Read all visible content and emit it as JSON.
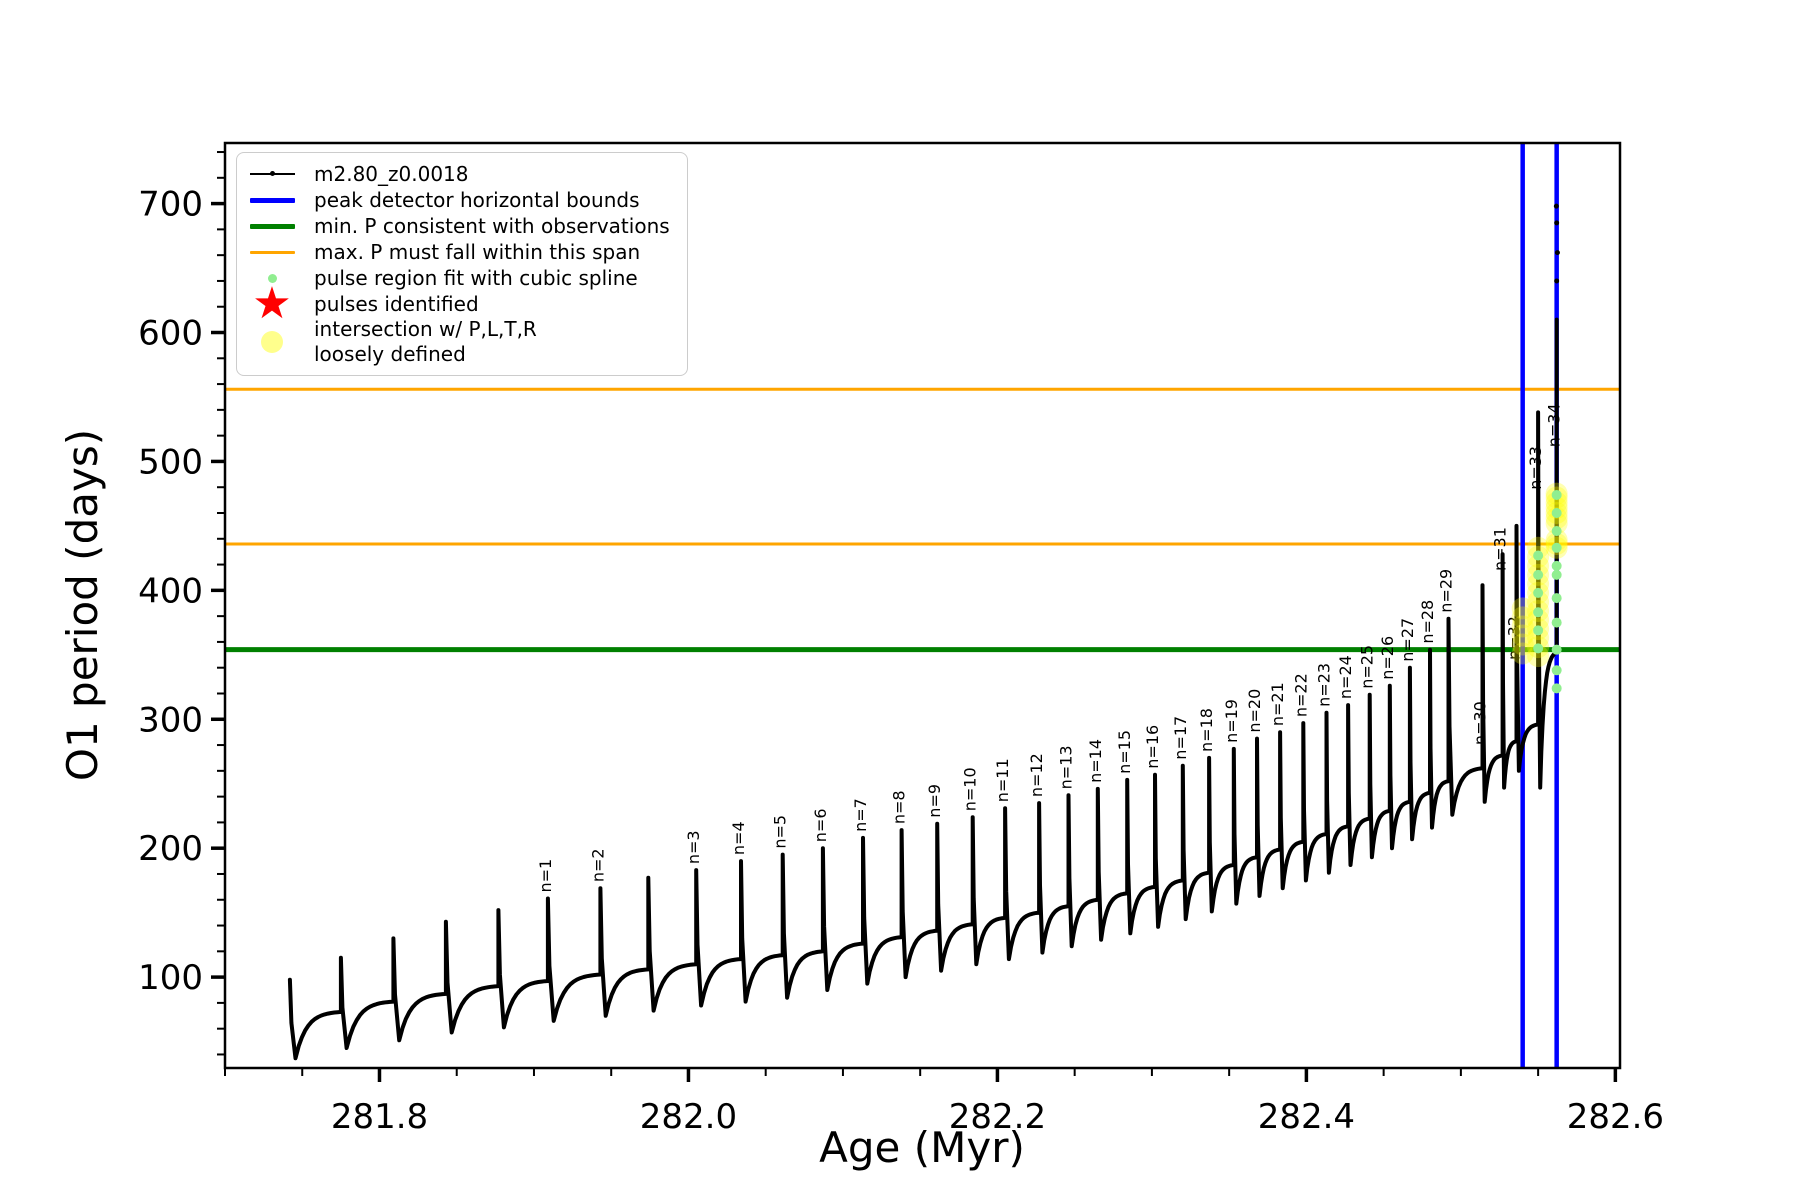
{
  "chart_data": {
    "type": "line",
    "title": "",
    "xlabel": "Age (Myr)",
    "ylabel": "O1 period (days)",
    "xlim": [
      281.7,
      282.603
    ],
    "ylim": [
      29.5,
      747
    ],
    "x_major_ticks": [
      {
        "v": 281.8,
        "label": "281.8"
      },
      {
        "v": 282.0,
        "label": "282.0"
      },
      {
        "v": 282.2,
        "label": "282.2"
      },
      {
        "v": 282.4,
        "label": "282.4"
      },
      {
        "v": 282.6,
        "label": "282.6"
      }
    ],
    "x_minor_step": 0.05,
    "y_major_ticks": [
      {
        "v": 100,
        "label": "100"
      },
      {
        "v": 200,
        "label": "200"
      },
      {
        "v": 300,
        "label": "300"
      },
      {
        "v": 400,
        "label": "400"
      },
      {
        "v": 500,
        "label": "500"
      },
      {
        "v": 600,
        "label": "600"
      },
      {
        "v": 700,
        "label": "700"
      }
    ],
    "y_minor_step": 20,
    "series_name": "m2.80_z0.0018",
    "series_color": "#000000",
    "pulses": [
      {
        "age": 281.742,
        "peak": 98,
        "base": 97,
        "label": null
      },
      {
        "age": 281.775,
        "peak": 115,
        "base": 73,
        "label": null
      },
      {
        "age": 281.809,
        "peak": 130,
        "base": 81,
        "label": null
      },
      {
        "age": 281.843,
        "peak": 143,
        "base": 87,
        "label": null
      },
      {
        "age": 281.877,
        "peak": 152,
        "base": 93,
        "label": null
      },
      {
        "age": 281.909,
        "peak": 161,
        "base": 97,
        "label": "n=1"
      },
      {
        "age": 281.943,
        "peak": 169,
        "base": 102,
        "label": "n=2"
      },
      {
        "age": 281.974,
        "peak": 177,
        "base": 106,
        "label": null
      },
      {
        "age": 282.005,
        "peak": 183,
        "base": 110,
        "label": "n=3"
      },
      {
        "age": 282.034,
        "peak": 190,
        "base": 114,
        "label": "n=4"
      },
      {
        "age": 282.061,
        "peak": 195,
        "base": 117,
        "label": "n=5"
      },
      {
        "age": 282.087,
        "peak": 200,
        "base": 120,
        "label": "n=6"
      },
      {
        "age": 282.113,
        "peak": 208,
        "base": 126,
        "label": "n=7"
      },
      {
        "age": 282.138,
        "peak": 214,
        "base": 131,
        "label": "n=8"
      },
      {
        "age": 282.161,
        "peak": 219,
        "base": 136,
        "label": "n=9"
      },
      {
        "age": 282.184,
        "peak": 224,
        "base": 141,
        "label": "n=10"
      },
      {
        "age": 282.205,
        "peak": 231,
        "base": 146,
        "label": "n=11"
      },
      {
        "age": 282.227,
        "peak": 235,
        "base": 150,
        "label": "n=12"
      },
      {
        "age": 282.246,
        "peak": 241,
        "base": 155,
        "label": "n=13"
      },
      {
        "age": 282.265,
        "peak": 246,
        "base": 160,
        "label": "n=14"
      },
      {
        "age": 282.284,
        "peak": 253,
        "base": 165,
        "label": "n=15"
      },
      {
        "age": 282.302,
        "peak": 257,
        "base": 170,
        "label": "n=16"
      },
      {
        "age": 282.32,
        "peak": 264,
        "base": 175,
        "label": "n=17"
      },
      {
        "age": 282.337,
        "peak": 270,
        "base": 181,
        "label": "n=18"
      },
      {
        "age": 282.353,
        "peak": 277,
        "base": 187,
        "label": "n=19"
      },
      {
        "age": 282.368,
        "peak": 285,
        "base": 193,
        "label": "n=20"
      },
      {
        "age": 282.383,
        "peak": 290,
        "base": 199,
        "label": "n=21"
      },
      {
        "age": 282.398,
        "peak": 297,
        "base": 205,
        "label": "n=22"
      },
      {
        "age": 282.413,
        "peak": 305,
        "base": 211,
        "label": "n=23"
      },
      {
        "age": 282.427,
        "peak": 311,
        "base": 217,
        "label": "n=24"
      },
      {
        "age": 282.441,
        "peak": 319,
        "base": 223,
        "label": "n=25"
      },
      {
        "age": 282.454,
        "peak": 326,
        "base": 229,
        "label": "n=26"
      },
      {
        "age": 282.467,
        "peak": 340,
        "base": 236,
        "label": "n=27"
      },
      {
        "age": 282.48,
        "peak": 354,
        "base": 243,
        "label": "n=28"
      },
      {
        "age": 282.492,
        "peak": 378,
        "base": 252,
        "label": "n=29"
      },
      {
        "age": 282.514,
        "peak": 404,
        "base": 262,
        "label": "n=30",
        "label_v": 280
      },
      {
        "age": 282.527,
        "peak": 428,
        "base": 272,
        "label": "n=31",
        "label_v": 415
      },
      {
        "age": 282.536,
        "peak": 450,
        "base": 283,
        "label": "n=32",
        "label_v": 346
      },
      {
        "age": 282.55,
        "peak": 538,
        "base": 296,
        "label": "n=33",
        "label_v": 478,
        "dip_after": 247
      },
      {
        "age": 282.562,
        "peak": 610,
        "base": 352,
        "label": "n=34",
        "label_v": 511
      }
    ],
    "extra_series_dots": [
      [
        282.562,
        640
      ],
      [
        282.5625,
        662
      ],
      [
        282.562,
        685
      ],
      [
        282.5618,
        698
      ]
    ],
    "hlines": [
      {
        "y": 556,
        "color": "#FFA500",
        "width": 3,
        "name": "max. P must fall within this span (upper)"
      },
      {
        "y": 436,
        "color": "#FFA500",
        "width": 3,
        "name": "max. P must fall within this span (lower)"
      },
      {
        "y": 354,
        "color": "#008000",
        "width": 5,
        "name": "min. P consistent with observations"
      }
    ],
    "vlines": [
      {
        "x": 282.54,
        "color": "#0000FF",
        "width": 4.5,
        "name": "peak detector left bound"
      },
      {
        "x": 282.562,
        "color": "#0000FF",
        "width": 4.5,
        "name": "peak detector right bound"
      }
    ],
    "spline_points": {
      "color": "#90EE90",
      "radius": 5,
      "points": [
        [
          282.55,
          355
        ],
        [
          282.55,
          369
        ],
        [
          282.55,
          383
        ],
        [
          282.55,
          398
        ],
        [
          282.55,
          412
        ],
        [
          282.55,
          427
        ],
        [
          282.562,
          324
        ],
        [
          282.562,
          338
        ],
        [
          282.562,
          354
        ],
        [
          282.562,
          375
        ],
        [
          282.562,
          394
        ],
        [
          282.562,
          412
        ],
        [
          282.562,
          419
        ],
        [
          282.562,
          433
        ],
        [
          282.562,
          446
        ],
        [
          282.562,
          460
        ],
        [
          282.562,
          474
        ]
      ]
    },
    "intersection_points": {
      "color": "rgba(255,255,0,0.30)",
      "radius": 11,
      "points": [
        [
          282.54,
          351
        ],
        [
          282.54,
          358
        ],
        [
          282.54,
          365
        ],
        [
          282.54,
          372
        ],
        [
          282.54,
          379
        ],
        [
          282.54,
          386
        ],
        [
          282.55,
          349
        ],
        [
          282.55,
          356
        ],
        [
          282.55,
          363
        ],
        [
          282.55,
          370
        ],
        [
          282.55,
          377
        ],
        [
          282.55,
          384
        ],
        [
          282.55,
          391
        ],
        [
          282.55,
          398
        ],
        [
          282.55,
          405
        ],
        [
          282.55,
          412
        ],
        [
          282.55,
          419
        ],
        [
          282.55,
          426
        ],
        [
          282.55,
          433
        ],
        [
          282.562,
          433
        ],
        [
          282.562,
          436
        ],
        [
          282.562,
          439
        ],
        [
          282.562,
          452
        ],
        [
          282.562,
          456
        ],
        [
          282.562,
          460
        ],
        [
          282.562,
          464
        ],
        [
          282.562,
          468
        ],
        [
          282.562,
          472
        ],
        [
          282.562,
          475
        ]
      ]
    },
    "legend": [
      {
        "marker": "line-dot",
        "color": "#000000",
        "thick": 2,
        "text": "m2.80_z0.0018"
      },
      {
        "marker": "line",
        "color": "#0000FF",
        "thick": 5,
        "text": "peak detector horizontal bounds"
      },
      {
        "marker": "line",
        "color": "#008000",
        "thick": 5,
        "text": "min. P consistent with observations"
      },
      {
        "marker": "line",
        "color": "#FFA500",
        "thick": 3,
        "text": "max. P must fall within this span"
      },
      {
        "marker": "dot-small",
        "color": "#90EE90",
        "size": 9,
        "text": "pulse region fit with cubic spline"
      },
      {
        "marker": "star",
        "color": "#FF0000",
        "text": "pulses identified"
      },
      {
        "marker": "dot-large",
        "color": "rgba(255,255,0,0.45)",
        "size": 22,
        "text": "intersection w/ P,L,T,R",
        "text2": "loosely defined"
      }
    ]
  }
}
